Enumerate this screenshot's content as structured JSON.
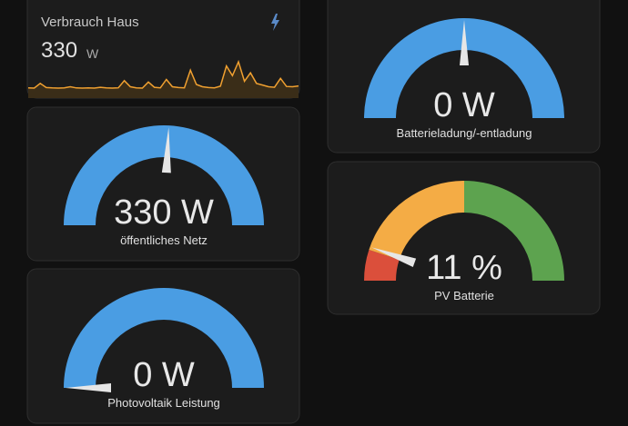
{
  "sensor_card": {
    "title": "Verbrauch Haus",
    "value": 330,
    "unit": "W",
    "history": [
      260,
      250,
      420,
      270,
      255,
      250,
      260,
      300,
      255,
      250,
      260,
      250,
      280,
      255,
      250,
      260,
      520,
      300,
      260,
      250,
      470,
      280,
      260,
      560,
      300,
      270,
      260,
      900,
      380,
      300,
      270,
      260,
      320,
      1050,
      700,
      1200,
      500,
      800,
      420,
      360,
      300,
      280,
      600,
      310,
      300,
      330
    ],
    "line_color": "#f0a030"
  },
  "gauges": [
    {
      "value": 330,
      "unit": "W",
      "label": "öffentliches Netz",
      "min": 0,
      "max": 640,
      "color": "#4a9de3"
    },
    {
      "value": 0,
      "unit": "W",
      "label": "Photovoltaik Leistung",
      "min": 0,
      "max": 5000,
      "color": "#4a9de3"
    },
    {
      "value": 0,
      "unit": "W",
      "label": "Batterieladung/-entladung",
      "min": -5000,
      "max": 5000,
      "color": "#4a9de3"
    },
    {
      "value": 11,
      "unit": "%",
      "label": "PV Batterie",
      "min": 0,
      "max": 100,
      "segments": [
        {
          "from": 0,
          "color": "#db4f3b"
        },
        {
          "from": 10,
          "color": "#f4ac45"
        },
        {
          "from": 50,
          "color": "#5da34f"
        }
      ]
    }
  ]
}
